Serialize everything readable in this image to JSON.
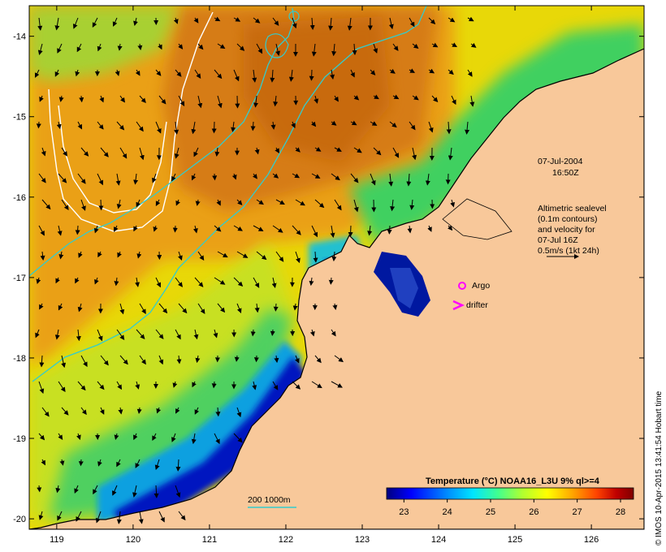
{
  "map": {
    "lat_ticks": [
      "-14",
      "-15",
      "-16",
      "-17",
      "-18",
      "-19",
      "-20"
    ],
    "lon_ticks": [
      "119",
      "120",
      "121",
      "122",
      "123",
      "124",
      "125",
      "126"
    ],
    "lat_values": [
      -14,
      -15,
      -16,
      -17,
      -18,
      -19,
      -20
    ],
    "lon_values": [
      119,
      120,
      121,
      122,
      123,
      124,
      125,
      126
    ],
    "lat_range": [
      -20.13,
      -13.62
    ],
    "lon_range": [
      118.64,
      126.69
    ],
    "land_color": "#f8c89a",
    "contour_color": "#33cccc",
    "sealevel_contour_color": "#ffffff"
  },
  "annotations": {
    "date": "07-Jul-2004",
    "time": "16:50Z",
    "altimetry_lines": [
      "Altimetric sealevel",
      "(0.1m contours)",
      "and velocity for",
      "07-Jul 16Z",
      "0.5m/s (1kt 24h)"
    ],
    "argo_label": "Argo",
    "drifter_label": "drifter",
    "argo_color": "#ff00ff",
    "drifter_color": "#ff00ff",
    "depth_label": "200  1000m"
  },
  "colorbar": {
    "title": "Temperature (°C) NOAA16_L3U 9% ql>=4",
    "ticks": [
      "23",
      "24",
      "25",
      "26",
      "27",
      "28"
    ],
    "tick_values": [
      23,
      24,
      25,
      26,
      27,
      28
    ],
    "range": [
      22.6,
      28.3
    ],
    "colors": [
      "#00007f",
      "#0000ff",
      "#0090ff",
      "#00e5ff",
      "#40ff90",
      "#b0ff30",
      "#ffff00",
      "#ffa800",
      "#ff4400",
      "#c00000",
      "#7f0000"
    ]
  },
  "credit": "© IMOS 10-Apr-2015 13:41:54 Hobart time"
}
